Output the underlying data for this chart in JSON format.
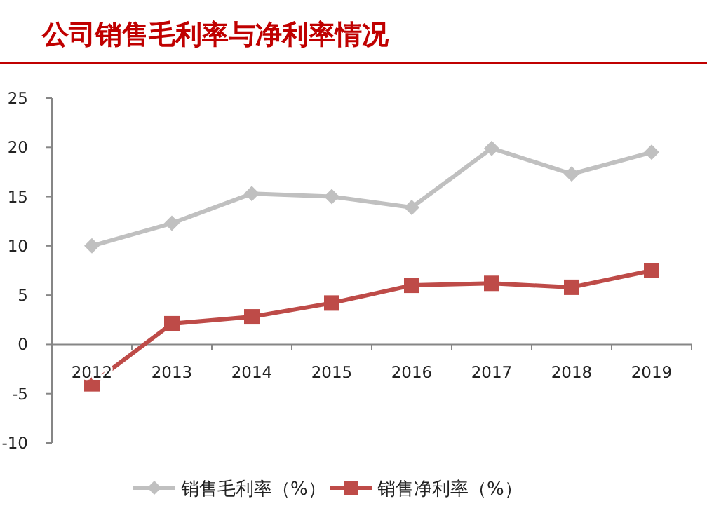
{
  "chart_data": {
    "type": "line",
    "title": "公司销售毛利率与净利率情况",
    "categories": [
      "2012",
      "2013",
      "2014",
      "2015",
      "2016",
      "2017",
      "2018",
      "2019"
    ],
    "series": [
      {
        "name": "销售毛利率（%）",
        "color": "#c0c0c0",
        "marker": "diamond",
        "values": [
          10.0,
          12.3,
          15.3,
          15.0,
          13.9,
          19.9,
          17.3,
          19.5
        ]
      },
      {
        "name": "销售净利率（%）",
        "color": "#be4b48",
        "marker": "square",
        "values": [
          -4.0,
          2.1,
          2.8,
          4.2,
          6.0,
          6.2,
          5.8,
          7.5
        ]
      }
    ],
    "ylim": [
      -10,
      25
    ],
    "yticks": [
      -10,
      -5,
      0,
      5,
      10,
      15,
      20,
      25
    ],
    "grid": false,
    "legend": "bottom",
    "line_style": "solid"
  }
}
